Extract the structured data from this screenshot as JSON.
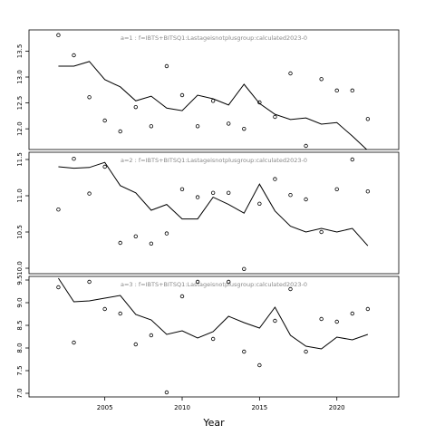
{
  "chart_data": [
    {
      "type": "line",
      "title": "a=1  :  f=IBTS+BITSQ1:Lastageisnotplusgroup:calculated2023-0",
      "x": [
        2002,
        2003,
        2004,
        2005,
        2006,
        2007,
        2008,
        2009,
        2010,
        2011,
        2012,
        2013,
        2014,
        2015,
        2016,
        2017,
        2018,
        2019,
        2020,
        2021,
        2022
      ],
      "series": [
        {
          "mode": "line",
          "color": "#000000",
          "values": [
            13.21,
            13.21,
            13.3,
            12.95,
            12.81,
            12.54,
            12.63,
            12.4,
            12.35,
            12.65,
            12.58,
            12.46,
            12.86,
            12.49,
            12.28,
            12.18,
            12.21,
            12.09,
            12.12,
            11.86,
            11.58
          ]
        },
        {
          "mode": "points",
          "color": "#000000",
          "values": [
            13.81,
            13.42,
            12.61,
            12.16,
            11.95,
            12.42,
            12.05,
            13.21,
            12.65,
            12.05,
            12.54,
            12.1,
            12.0,
            12.51,
            12.23,
            13.07,
            11.67,
            12.96,
            12.74,
            12.74,
            12.19
          ]
        }
      ],
      "xlim": [
        2000.1,
        2024
      ],
      "ylim": [
        11.6,
        13.91
      ],
      "yticks": [
        {
          "value": 12,
          "label": "12.0"
        },
        12.5,
        {
          "value": 13,
          "label": "13.0"
        },
        13.5
      ]
    },
    {
      "type": "line",
      "title": "a=2  :  f=IBTS+BITSQ1:Lastageisnotplusgroup:calculated2023-0",
      "x": [
        2002,
        2003,
        2004,
        2005,
        2006,
        2007,
        2008,
        2009,
        2010,
        2011,
        2012,
        2013,
        2014,
        2015,
        2016,
        2017,
        2018,
        2019,
        2020,
        2021,
        2022
      ],
      "series": [
        {
          "mode": "line",
          "color": "#000000",
          "values": [
            11.4,
            11.38,
            11.39,
            11.46,
            11.14,
            11.04,
            10.8,
            10.88,
            10.68,
            10.68,
            10.98,
            10.88,
            10.76,
            11.16,
            10.79,
            10.58,
            10.5,
            10.55,
            10.5,
            10.55,
            10.31
          ]
        },
        {
          "mode": "points",
          "color": "#000000",
          "values": [
            10.81,
            11.51,
            11.03,
            11.4,
            10.35,
            10.44,
            10.34,
            10.48,
            11.09,
            10.98,
            11.04,
            11.04,
            9.99,
            10.89,
            11.23,
            11.01,
            10.95,
            10.5,
            11.09,
            11.5,
            11.06
          ]
        }
      ],
      "xlim": [
        2000.1,
        2024
      ],
      "ylim": [
        9.925,
        11.6
      ],
      "yticks": [
        {
          "value": 10,
          "label": "10.0"
        },
        10.5,
        {
          "value": 11,
          "label": "11.0"
        },
        11.5
      ]
    },
    {
      "type": "line",
      "title": "a=3  :  f=IBTS+BITSQ1:Lastageisnotplusgroup:calculated2023-0",
      "x": [
        2002,
        2003,
        2004,
        2005,
        2006,
        2007,
        2008,
        2009,
        2010,
        2011,
        2012,
        2013,
        2014,
        2015,
        2016,
        2017,
        2018,
        2019,
        2020,
        2021,
        2022
      ],
      "series": [
        {
          "mode": "line",
          "color": "#000000",
          "values": [
            9.54,
            9.02,
            9.04,
            9.1,
            9.16,
            8.74,
            8.62,
            8.3,
            8.38,
            8.22,
            8.36,
            8.7,
            8.56,
            8.44,
            8.9,
            8.28,
            8.04,
            7.98,
            8.24,
            8.18,
            8.3
          ]
        },
        {
          "mode": "points",
          "color": "#000000",
          "values": [
            9.34,
            8.12,
            9.46,
            8.86,
            8.76,
            8.08,
            8.28,
            7.02,
            9.14,
            9.46,
            8.2,
            9.46,
            7.92,
            7.62,
            8.6,
            9.3,
            7.92,
            8.64,
            8.58,
            8.76,
            8.86
          ]
        }
      ],
      "xlim": [
        2000.1,
        2024
      ],
      "ylim": [
        6.92,
        9.58
      ],
      "yticks": [
        {
          "value": 7,
          "label": "7.0"
        },
        7.5,
        {
          "value": 8,
          "label": "8.0"
        },
        8.5,
        {
          "value": 9,
          "label": "9.0"
        },
        9.5
      ],
      "xlabel": "Year",
      "xticks": [
        2005,
        2010,
        2015,
        2020
      ]
    }
  ]
}
